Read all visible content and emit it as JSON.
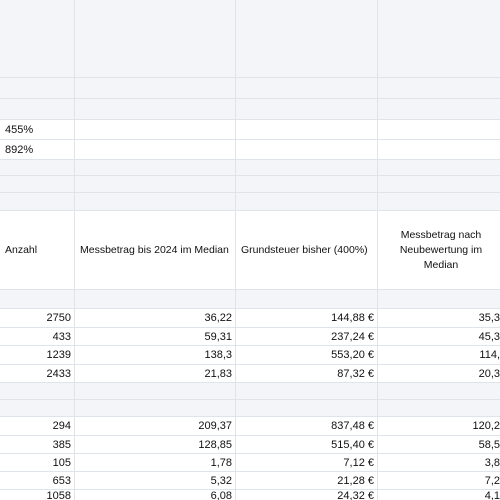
{
  "percentages": [
    "455%",
    "892%"
  ],
  "header": {
    "col_anzahl": "Anzahl",
    "col_messbetrag_2024": "Messbetrag bis 2024 im Median",
    "col_grundsteuer_bisher": "Grundsteuer bisher (400%)",
    "col_messbetrag_neu": "Messbetrag nach Neubewertung im Median"
  },
  "group1": [
    {
      "anzahl": "2750",
      "messbetrag": "36,22",
      "grundsteuer": "144,88 €",
      "neu": "35,3"
    },
    {
      "anzahl": "433",
      "messbetrag": "59,31",
      "grundsteuer": "237,24 €",
      "neu": "45,3"
    },
    {
      "anzahl": "1239",
      "messbetrag": "138,3",
      "grundsteuer": "553,20 €",
      "neu": "114,"
    },
    {
      "anzahl": "2433",
      "messbetrag": "21,83",
      "grundsteuer": "87,32 €",
      "neu": "20,3"
    }
  ],
  "group2": [
    {
      "anzahl": "294",
      "messbetrag": "209,37",
      "grundsteuer": "837,48 €",
      "neu": "120,2"
    },
    {
      "anzahl": "385",
      "messbetrag": "128,85",
      "grundsteuer": "515,40 €",
      "neu": "58,5"
    },
    {
      "anzahl": "105",
      "messbetrag": "1,78",
      "grundsteuer": "7,12 €",
      "neu": "3,8"
    },
    {
      "anzahl": "653",
      "messbetrag": "5,32",
      "grundsteuer": "21,28 €",
      "neu": "7,2"
    },
    {
      "anzahl": "1058",
      "messbetrag": "6,08",
      "grundsteuer": "24,32 €",
      "neu": "4,1"
    }
  ]
}
